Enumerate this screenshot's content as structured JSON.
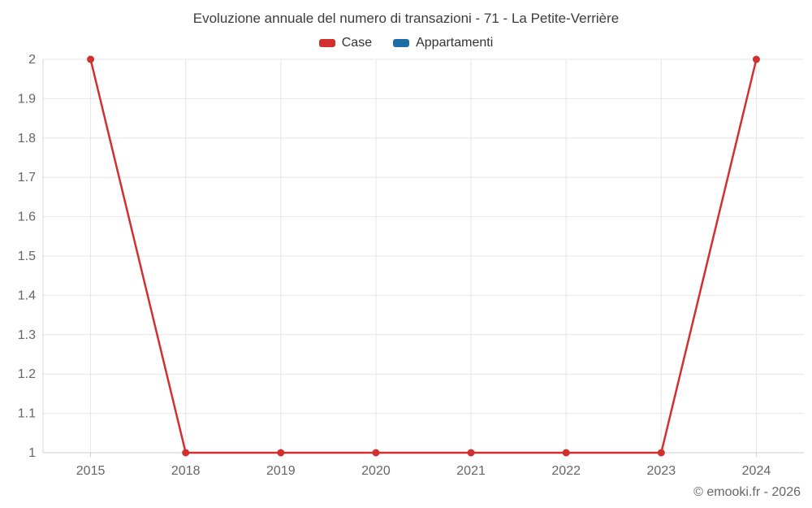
{
  "chart_data": {
    "type": "line",
    "title": "Evoluzione annuale del numero di transazioni - 71 - La Petite-Verrière",
    "categories": [
      "2015",
      "2018",
      "2019",
      "2020",
      "2021",
      "2022",
      "2023",
      "2024"
    ],
    "series": [
      {
        "name": "Case",
        "color": "#d32f2f",
        "values": [
          2,
          1,
          1,
          1,
          1,
          1,
          1,
          2
        ]
      },
      {
        "name": "Appartamenti",
        "color": "#1c6ea4",
        "values": []
      }
    ],
    "xlabel": "",
    "ylabel": "",
    "ylim": [
      1,
      2
    ],
    "ytick_step": 0.1,
    "ytick_labels": [
      "1",
      "1.1",
      "1.2",
      "1.3",
      "1.4",
      "1.5",
      "1.6",
      "1.7",
      "1.8",
      "1.9",
      "2"
    ],
    "grid": true,
    "legend_position": "top",
    "grid_color": "#e6e6e6",
    "axis_text_color": "#666666"
  },
  "footer": {
    "copyright": "© emooki.fr - 2026"
  }
}
